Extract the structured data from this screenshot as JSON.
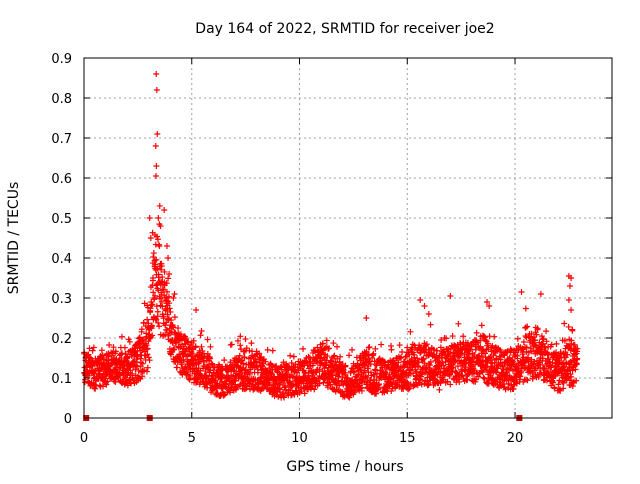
{
  "chart_data": {
    "type": "scatter",
    "title": "Day 164 of 2022, SRMTID for receiver joe2",
    "xlabel": "GPS time / hours",
    "ylabel": "SRMTID / TECUs",
    "xlim": [
      0,
      24.5
    ],
    "ylim": [
      0,
      0.9
    ],
    "xticks": [
      0,
      5,
      10,
      15,
      20
    ],
    "xtick_labels": [
      "0",
      "5",
      "10",
      "15",
      "20"
    ],
    "yticks": [
      0,
      0.1,
      0.2,
      0.3,
      0.4,
      0.5,
      0.6,
      0.7,
      0.8,
      0.9
    ],
    "ytick_labels": [
      "0",
      "0.1",
      "0.2",
      "0.3",
      "0.4",
      "0.5",
      "0.6",
      "0.7",
      "0.8",
      "0.9"
    ],
    "grid": true,
    "marker": "+",
    "color": "#ff0000",
    "series": [
      {
        "name": "SRMTID",
        "envelope": {
          "x": [
            0.0,
            0.5,
            1.0,
            1.5,
            2.0,
            2.5,
            3.0,
            3.2,
            3.4,
            3.6,
            3.8,
            4.0,
            4.2,
            4.5,
            5.0,
            5.5,
            6.0,
            6.5,
            7.0,
            7.5,
            8.0,
            8.5,
            9.0,
            9.5,
            10.0,
            10.5,
            11.0,
            11.5,
            12.0,
            12.5,
            13.0,
            13.5,
            14.0,
            14.5,
            15.0,
            15.5,
            16.0,
            16.5,
            17.0,
            17.5,
            18.0,
            18.5,
            19.0,
            19.5,
            20.0,
            20.5,
            21.0,
            21.5,
            22.0,
            22.5,
            22.9
          ],
          "center": [
            0.13,
            0.11,
            0.12,
            0.13,
            0.12,
            0.14,
            0.2,
            0.3,
            0.36,
            0.3,
            0.28,
            0.22,
            0.18,
            0.16,
            0.14,
            0.13,
            0.1,
            0.09,
            0.11,
            0.12,
            0.12,
            0.1,
            0.09,
            0.09,
            0.1,
            0.11,
            0.14,
            0.12,
            0.09,
            0.09,
            0.12,
            0.11,
            0.1,
            0.11,
            0.12,
            0.14,
            0.13,
            0.12,
            0.13,
            0.14,
            0.14,
            0.15,
            0.13,
            0.12,
            0.12,
            0.15,
            0.16,
            0.14,
            0.11,
            0.13,
            0.14
          ],
          "spread": [
            0.04,
            0.04,
            0.04,
            0.04,
            0.04,
            0.05,
            0.08,
            0.1,
            0.12,
            0.1,
            0.08,
            0.06,
            0.05,
            0.05,
            0.05,
            0.05,
            0.04,
            0.04,
            0.04,
            0.05,
            0.05,
            0.04,
            0.04,
            0.04,
            0.04,
            0.05,
            0.05,
            0.05,
            0.04,
            0.04,
            0.05,
            0.05,
            0.04,
            0.04,
            0.05,
            0.06,
            0.05,
            0.05,
            0.05,
            0.05,
            0.05,
            0.06,
            0.05,
            0.05,
            0.05,
            0.06,
            0.06,
            0.05,
            0.05,
            0.06,
            0.05
          ],
          "sample_step": 0.008
        },
        "outliers": [
          {
            "x": 3.35,
            "y": 0.86
          },
          {
            "x": 3.38,
            "y": 0.82
          },
          {
            "x": 3.4,
            "y": 0.71
          },
          {
            "x": 3.33,
            "y": 0.68
          },
          {
            "x": 3.36,
            "y": 0.63
          },
          {
            "x": 3.34,
            "y": 0.605
          },
          {
            "x": 3.72,
            "y": 0.52
          },
          {
            "x": 3.05,
            "y": 0.5
          },
          {
            "x": 3.45,
            "y": 0.5
          },
          {
            "x": 3.55,
            "y": 0.48
          },
          {
            "x": 3.1,
            "y": 0.45
          },
          {
            "x": 3.5,
            "y": 0.43
          },
          {
            "x": 3.85,
            "y": 0.43
          },
          {
            "x": 3.9,
            "y": 0.4
          },
          {
            "x": 3.6,
            "y": 0.38
          },
          {
            "x": 3.95,
            "y": 0.36
          },
          {
            "x": 3.2,
            "y": 0.35
          },
          {
            "x": 4.2,
            "y": 0.31
          },
          {
            "x": 4.15,
            "y": 0.3
          },
          {
            "x": 5.2,
            "y": 0.27
          },
          {
            "x": 13.1,
            "y": 0.25
          },
          {
            "x": 15.6,
            "y": 0.295
          },
          {
            "x": 15.8,
            "y": 0.28
          },
          {
            "x": 16.0,
            "y": 0.26
          },
          {
            "x": 17.0,
            "y": 0.305
          },
          {
            "x": 18.7,
            "y": 0.29
          },
          {
            "x": 18.8,
            "y": 0.28
          },
          {
            "x": 20.3,
            "y": 0.315
          },
          {
            "x": 21.2,
            "y": 0.31
          },
          {
            "x": 22.5,
            "y": 0.355
          },
          {
            "x": 22.6,
            "y": 0.35
          },
          {
            "x": 22.55,
            "y": 0.33
          },
          {
            "x": 22.5,
            "y": 0.295
          },
          {
            "x": 22.6,
            "y": 0.27
          }
        ]
      }
    ],
    "axis_markers": {
      "color": "#cc0000",
      "x": [
        0.1,
        3.05,
        20.2
      ]
    }
  }
}
